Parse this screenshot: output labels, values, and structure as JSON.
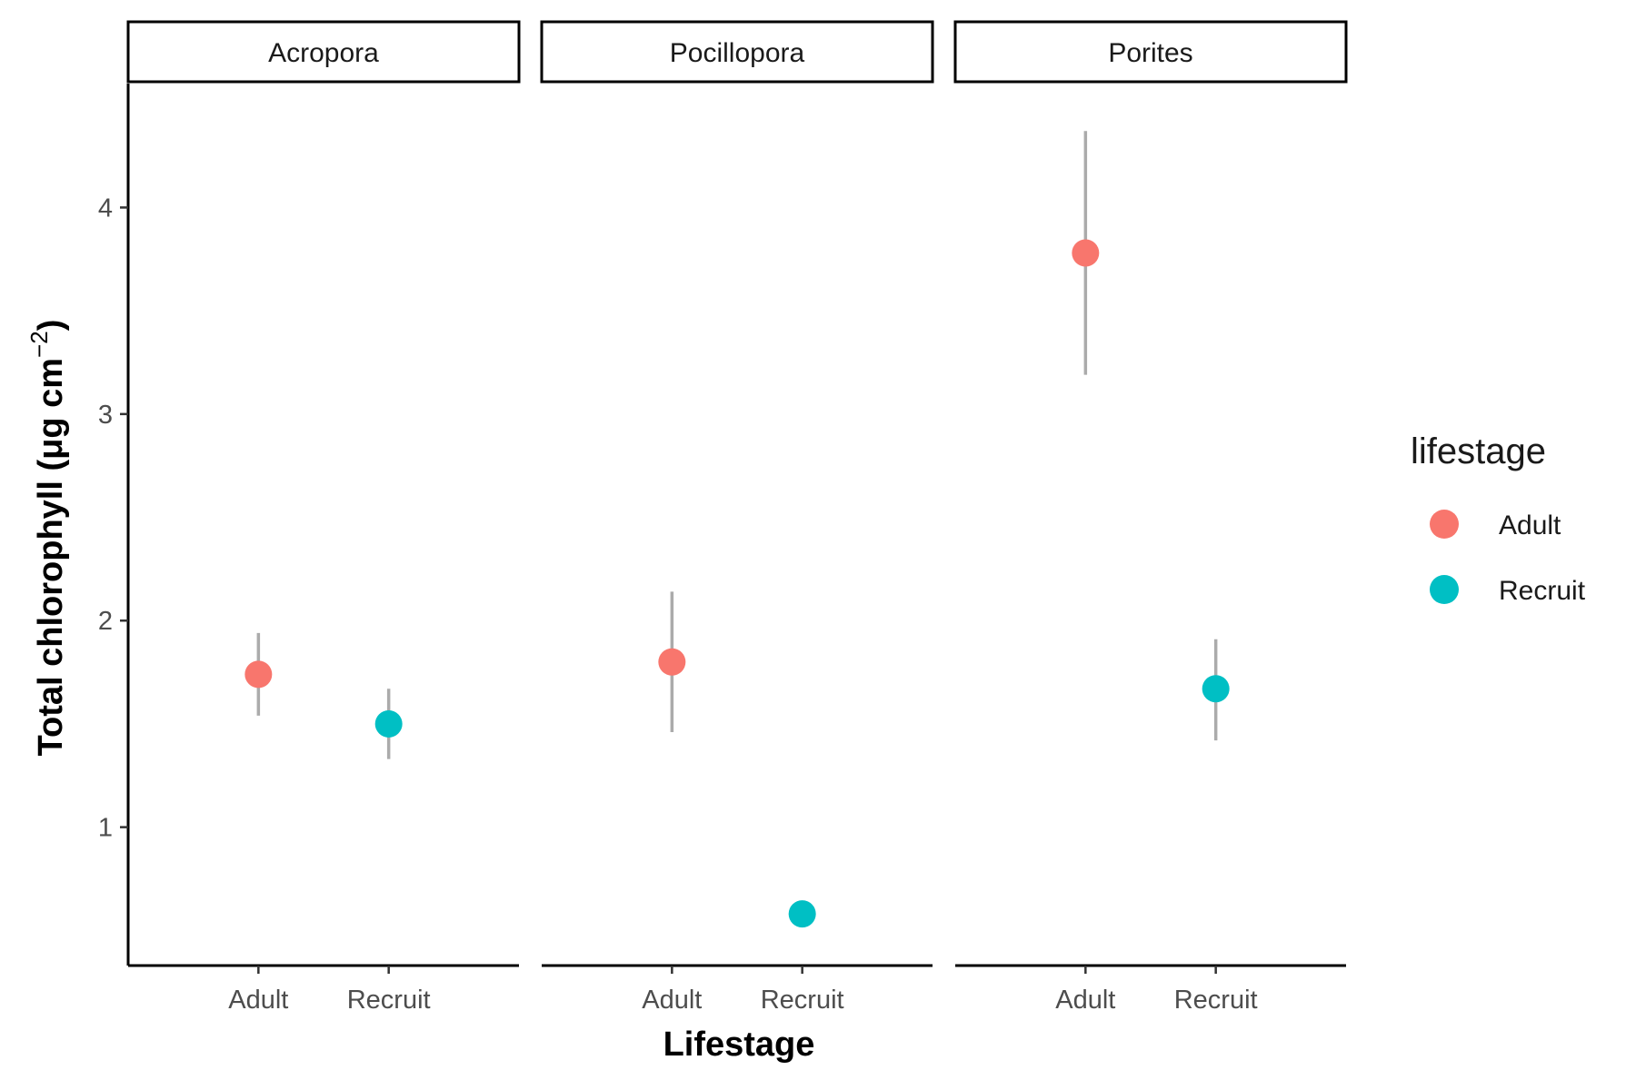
{
  "chart_data": {
    "type": "scatter",
    "facets": [
      "Acropora",
      "Pocillopora",
      "Porites"
    ],
    "categories": [
      "Adult",
      "Recruit"
    ],
    "xlabel": "Lifestage",
    "ylabel": "Total chlorophyll (μg cm",
    "ylabel_superscript": "−2",
    "ylabel_close": ")",
    "ylim": [
      0.33,
      4.6
    ],
    "yticks": [
      1,
      2,
      3,
      4
    ],
    "legend": {
      "title": "lifestage",
      "position": "right",
      "entries": [
        {
          "label": "Adult",
          "color": "#F8766D"
        },
        {
          "label": "Recruit",
          "color": "#00BFC4"
        }
      ]
    },
    "errorbar_color": "#ababab",
    "points": [
      {
        "facet": "Acropora",
        "x": "Adult",
        "y": 1.74,
        "ymin": 1.54,
        "ymax": 1.94
      },
      {
        "facet": "Acropora",
        "x": "Recruit",
        "y": 1.5,
        "ymin": 1.33,
        "ymax": 1.67
      },
      {
        "facet": "Pocillopora",
        "x": "Adult",
        "y": 1.8,
        "ymin": 1.46,
        "ymax": 2.14
      },
      {
        "facet": "Pocillopora",
        "x": "Recruit",
        "y": 0.58,
        "ymin": 0.58,
        "ymax": 0.58
      },
      {
        "facet": "Porites",
        "x": "Adult",
        "y": 3.78,
        "ymin": 3.19,
        "ymax": 4.37
      },
      {
        "facet": "Porites",
        "x": "Recruit",
        "y": 1.67,
        "ymin": 1.42,
        "ymax": 1.91
      }
    ]
  }
}
